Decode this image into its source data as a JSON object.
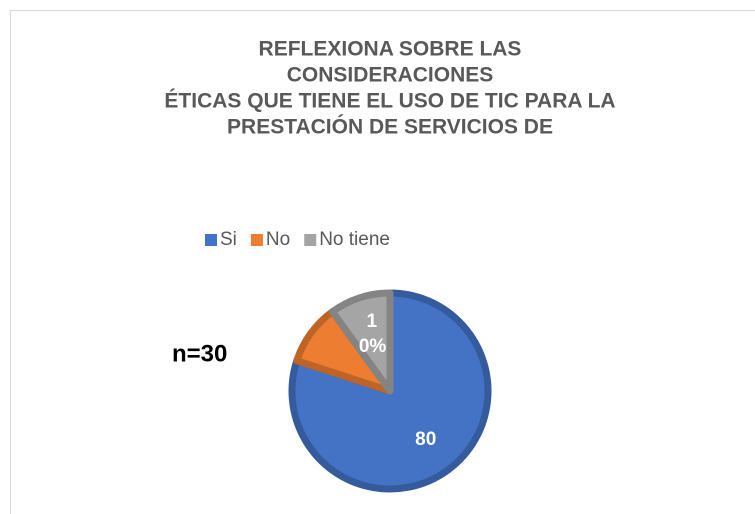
{
  "chart_data": {
    "type": "pie",
    "title": [
      "REFLEXIONA SOBRE LAS",
      "CONSIDERACIONES",
      "ÉTICAS QUE TIENE EL USO DE TIC PARA LA",
      "PRESTACIÓN DE SERVICIOS DE"
    ],
    "annotation": "n=30",
    "categories": [
      "Si",
      "No",
      "No tiene"
    ],
    "values": [
      80,
      10,
      10
    ],
    "value_labels": [
      "80",
      null,
      "10%"
    ],
    "colors": [
      "#4472c4",
      "#ed7d31",
      "#a5a5a5"
    ],
    "legend": "top"
  }
}
